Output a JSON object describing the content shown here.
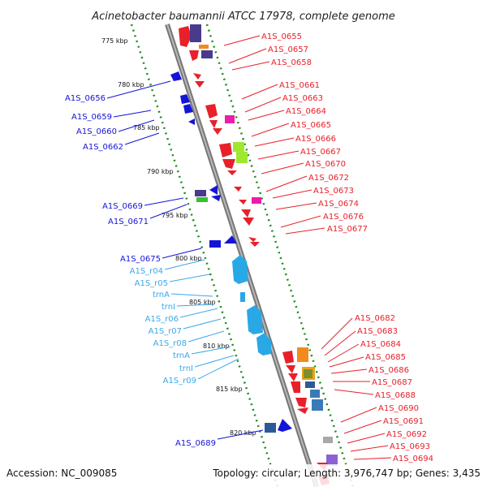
{
  "title": "Acinetobacter baumannii ATCC 17978, complete genome",
  "accession": "Accession: NC_009085",
  "topology": "Topology: circular; Length: 3,976,747 bp; Genes: 3,435",
  "colors": {
    "forward_gene": "#e8202a",
    "reverse_gene": "#1414d8",
    "rna_gene": "#29a8e6",
    "rna_label": "#3aa8e8",
    "scale_dots": "#1e8a1e",
    "backbone": "#8c8c8c"
  },
  "scale_labels": [
    "775 kbp",
    "780 kbp",
    "785 kbp",
    "790 kbp",
    "795 kbp",
    "800 kbp",
    "805 kbp",
    "810 kbp",
    "815 kbp",
    "820 kbp"
  ],
  "left_labels": [
    {
      "text": "A1S_0656",
      "kind": "cds"
    },
    {
      "text": "A1S_0659",
      "kind": "cds"
    },
    {
      "text": "A1S_0660",
      "kind": "cds"
    },
    {
      "text": "A1S_0662",
      "kind": "cds"
    },
    {
      "text": "A1S_0669",
      "kind": "cds"
    },
    {
      "text": "A1S_0671",
      "kind": "cds"
    },
    {
      "text": "A1S_0675",
      "kind": "cds"
    },
    {
      "text": "A1S_r04",
      "kind": "rna"
    },
    {
      "text": "A1S_r05",
      "kind": "rna"
    },
    {
      "text": "trnA",
      "kind": "rna"
    },
    {
      "text": "trnI",
      "kind": "rna"
    },
    {
      "text": "A1S_r06",
      "kind": "rna"
    },
    {
      "text": "A1S_r07",
      "kind": "rna"
    },
    {
      "text": "A1S_r08",
      "kind": "rna"
    },
    {
      "text": "trnA",
      "kind": "rna"
    },
    {
      "text": "trnI",
      "kind": "rna"
    },
    {
      "text": "A1S_r09",
      "kind": "rna"
    },
    {
      "text": "A1S_0689",
      "kind": "cds"
    }
  ],
  "right_labels": [
    "A1S_0655",
    "A1S_0657",
    "A1S_0658",
    "A1S_0661",
    "A1S_0663",
    "A1S_0664",
    "A1S_0665",
    "A1S_0666",
    "A1S_0667",
    "A1S_0670",
    "A1S_0672",
    "A1S_0673",
    "A1S_0674",
    "A1S_0676",
    "A1S_0677",
    "A1S_0682",
    "A1S_0683",
    "A1S_0684",
    "A1S_0685",
    "A1S_0686",
    "A1S_0687",
    "A1S_0688",
    "A1S_0690",
    "A1S_0691",
    "A1S_0692",
    "A1S_0693",
    "A1S_0694"
  ]
}
